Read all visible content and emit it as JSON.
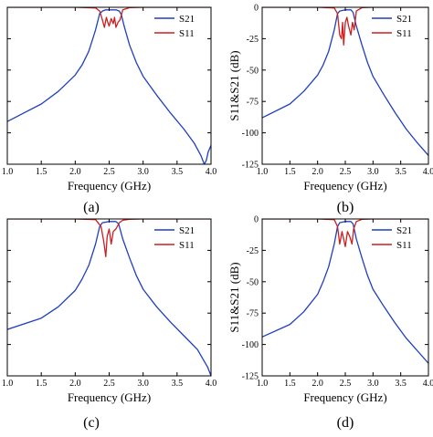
{
  "chart_data": [
    {
      "panel": "a",
      "type": "line",
      "caption": "(a)",
      "xlabel": "Frequency (GHz)",
      "ylabel": "",
      "xlim": [
        1.0,
        4.0
      ],
      "ylim": [
        -125,
        0
      ],
      "xticks": [
        "1.0",
        "1.5",
        "2.0",
        "2.5",
        "3.0",
        "3.5",
        "4.0"
      ],
      "yticks": [],
      "legend": [
        "S21",
        "S11"
      ],
      "legend_position": "top-right",
      "series": [
        {
          "name": "S21",
          "color": "#1f3fbf",
          "x": [
            1.0,
            1.25,
            1.5,
            1.75,
            2.0,
            2.1,
            2.2,
            2.3,
            2.36,
            2.4,
            2.45,
            2.5,
            2.55,
            2.6,
            2.65,
            2.68,
            2.72,
            2.8,
            2.9,
            3.0,
            3.2,
            3.4,
            3.6,
            3.75,
            3.85,
            3.9,
            3.93,
            3.96,
            4.0
          ],
          "y": [
            -91,
            -84,
            -77,
            -67,
            -54,
            -46,
            -35,
            -18,
            -5,
            -3,
            -2,
            -2,
            -2,
            -2,
            -3,
            -6,
            -15,
            -30,
            -44,
            -55,
            -70,
            -84,
            -97,
            -108,
            -118,
            -125,
            -122,
            -115,
            -110
          ]
        },
        {
          "name": "S11",
          "color": "#cc1f1f",
          "x": [
            1.0,
            2.0,
            2.3,
            2.36,
            2.4,
            2.43,
            2.46,
            2.48,
            2.5,
            2.53,
            2.56,
            2.58,
            2.6,
            2.63,
            2.66,
            2.7,
            2.8,
            3.0,
            4.0
          ],
          "y": [
            0,
            0,
            -0.5,
            -3,
            -10,
            -16,
            -8,
            -12,
            -15,
            -9,
            -13,
            -8,
            -16,
            -12,
            -10,
            -2,
            -0.3,
            0,
            0
          ]
        }
      ]
    },
    {
      "panel": "b",
      "type": "line",
      "caption": "(b)",
      "xlabel": "Frequency (GHz)",
      "ylabel": "S11&S21 (dB)",
      "xlim": [
        1.0,
        4.0
      ],
      "ylim": [
        -125,
        0
      ],
      "xticks": [
        "1.0",
        "1.5",
        "2.0",
        "2.5",
        "3.0",
        "3.5",
        "4.0"
      ],
      "yticks": [
        "0",
        "-25",
        "-50",
        "-75",
        "-100",
        "-125"
      ],
      "legend": [
        "S21",
        "S11"
      ],
      "legend_position": "top-right",
      "series": [
        {
          "name": "S21",
          "color": "#1f3fbf",
          "x": [
            1.0,
            1.5,
            1.75,
            2.0,
            2.1,
            2.2,
            2.3,
            2.36,
            2.4,
            2.5,
            2.6,
            2.64,
            2.7,
            2.8,
            2.9,
            3.0,
            3.2,
            3.4,
            3.6,
            3.8,
            4.0
          ],
          "y": [
            -88,
            -77,
            -67,
            -54,
            -46,
            -35,
            -18,
            -5,
            -3,
            -2,
            -2,
            -4,
            -15,
            -30,
            -44,
            -55,
            -70,
            -84,
            -97,
            -108,
            -118
          ]
        },
        {
          "name": "S11",
          "color": "#cc1f1f",
          "x": [
            1.0,
            2.0,
            2.3,
            2.36,
            2.4,
            2.43,
            2.45,
            2.47,
            2.5,
            2.53,
            2.56,
            2.6,
            2.63,
            2.66,
            2.7,
            2.8,
            3.0,
            4.0
          ],
          "y": [
            0,
            0,
            -0.5,
            -5,
            -22,
            -25,
            -12,
            -30,
            -12,
            -8,
            -15,
            -22,
            -12,
            -18,
            -3,
            -0.3,
            0,
            0
          ]
        }
      ]
    },
    {
      "panel": "c",
      "type": "line",
      "caption": "(c)",
      "xlabel": "Frequency (GHz)",
      "ylabel": "",
      "xlim": [
        1.0,
        4.0
      ],
      "ylim": [
        -125,
        0
      ],
      "xticks": [
        "1.0",
        "1.5",
        "2.0",
        "2.5",
        "3.0",
        "3.5",
        "4.0"
      ],
      "yticks": [],
      "legend": [
        "S21",
        "S11"
      ],
      "legend_position": "top-right",
      "series": [
        {
          "name": "S21",
          "color": "#1f3fbf",
          "x": [
            1.0,
            1.5,
            1.75,
            2.0,
            2.1,
            2.2,
            2.3,
            2.36,
            2.4,
            2.5,
            2.6,
            2.64,
            2.7,
            2.8,
            2.9,
            3.0,
            3.2,
            3.4,
            3.6,
            3.8,
            3.95,
            4.0
          ],
          "y": [
            -88,
            -79,
            -70,
            -57,
            -48,
            -37,
            -20,
            -6,
            -3,
            -2,
            -2,
            -4,
            -16,
            -31,
            -45,
            -56,
            -70,
            -82,
            -93,
            -104,
            -118,
            -125
          ]
        },
        {
          "name": "S11",
          "color": "#cc1f1f",
          "x": [
            1.0,
            2.0,
            2.3,
            2.38,
            2.42,
            2.45,
            2.47,
            2.5,
            2.53,
            2.56,
            2.6,
            2.65,
            2.7,
            2.8,
            3.0,
            4.0
          ],
          "y": [
            0,
            0,
            -0.5,
            -6,
            -18,
            -30,
            -14,
            -8,
            -20,
            -10,
            -8,
            -3,
            -1,
            -0.3,
            0,
            0
          ]
        }
      ]
    },
    {
      "panel": "d",
      "type": "line",
      "caption": "(d)",
      "xlabel": "Frequency (GHz)",
      "ylabel": "S11&S21 (dB)",
      "xlim": [
        1.0,
        4.0
      ],
      "ylim": [
        -125,
        0
      ],
      "xticks": [
        "1.0",
        "1.5",
        "2.0",
        "2.5",
        "3.0",
        "3.5",
        "4.0"
      ],
      "yticks": [
        "0",
        "-25",
        "-50",
        "-75",
        "-100",
        "-125"
      ],
      "legend": [
        "S21",
        "S11"
      ],
      "legend_position": "top-right",
      "series": [
        {
          "name": "S21",
          "color": "#1f3fbf",
          "x": [
            1.0,
            1.5,
            1.75,
            2.0,
            2.1,
            2.2,
            2.3,
            2.36,
            2.4,
            2.5,
            2.6,
            2.64,
            2.7,
            2.8,
            2.9,
            3.0,
            3.2,
            3.4,
            3.6,
            3.8,
            4.0
          ],
          "y": [
            -94,
            -84,
            -74,
            -60,
            -50,
            -38,
            -20,
            -6,
            -3,
            -2,
            -2,
            -4,
            -16,
            -31,
            -45,
            -56,
            -70,
            -83,
            -95,
            -105,
            -115
          ]
        },
        {
          "name": "S11",
          "color": "#cc1f1f",
          "x": [
            1.0,
            2.0,
            2.3,
            2.36,
            2.4,
            2.44,
            2.47,
            2.5,
            2.54,
            2.58,
            2.62,
            2.65,
            2.7,
            2.8,
            3.0,
            4.0
          ],
          "y": [
            0,
            0,
            -0.5,
            -6,
            -20,
            -10,
            -16,
            -22,
            -10,
            -14,
            -20,
            -8,
            -2,
            -0.3,
            0,
            0
          ]
        }
      ]
    }
  ]
}
